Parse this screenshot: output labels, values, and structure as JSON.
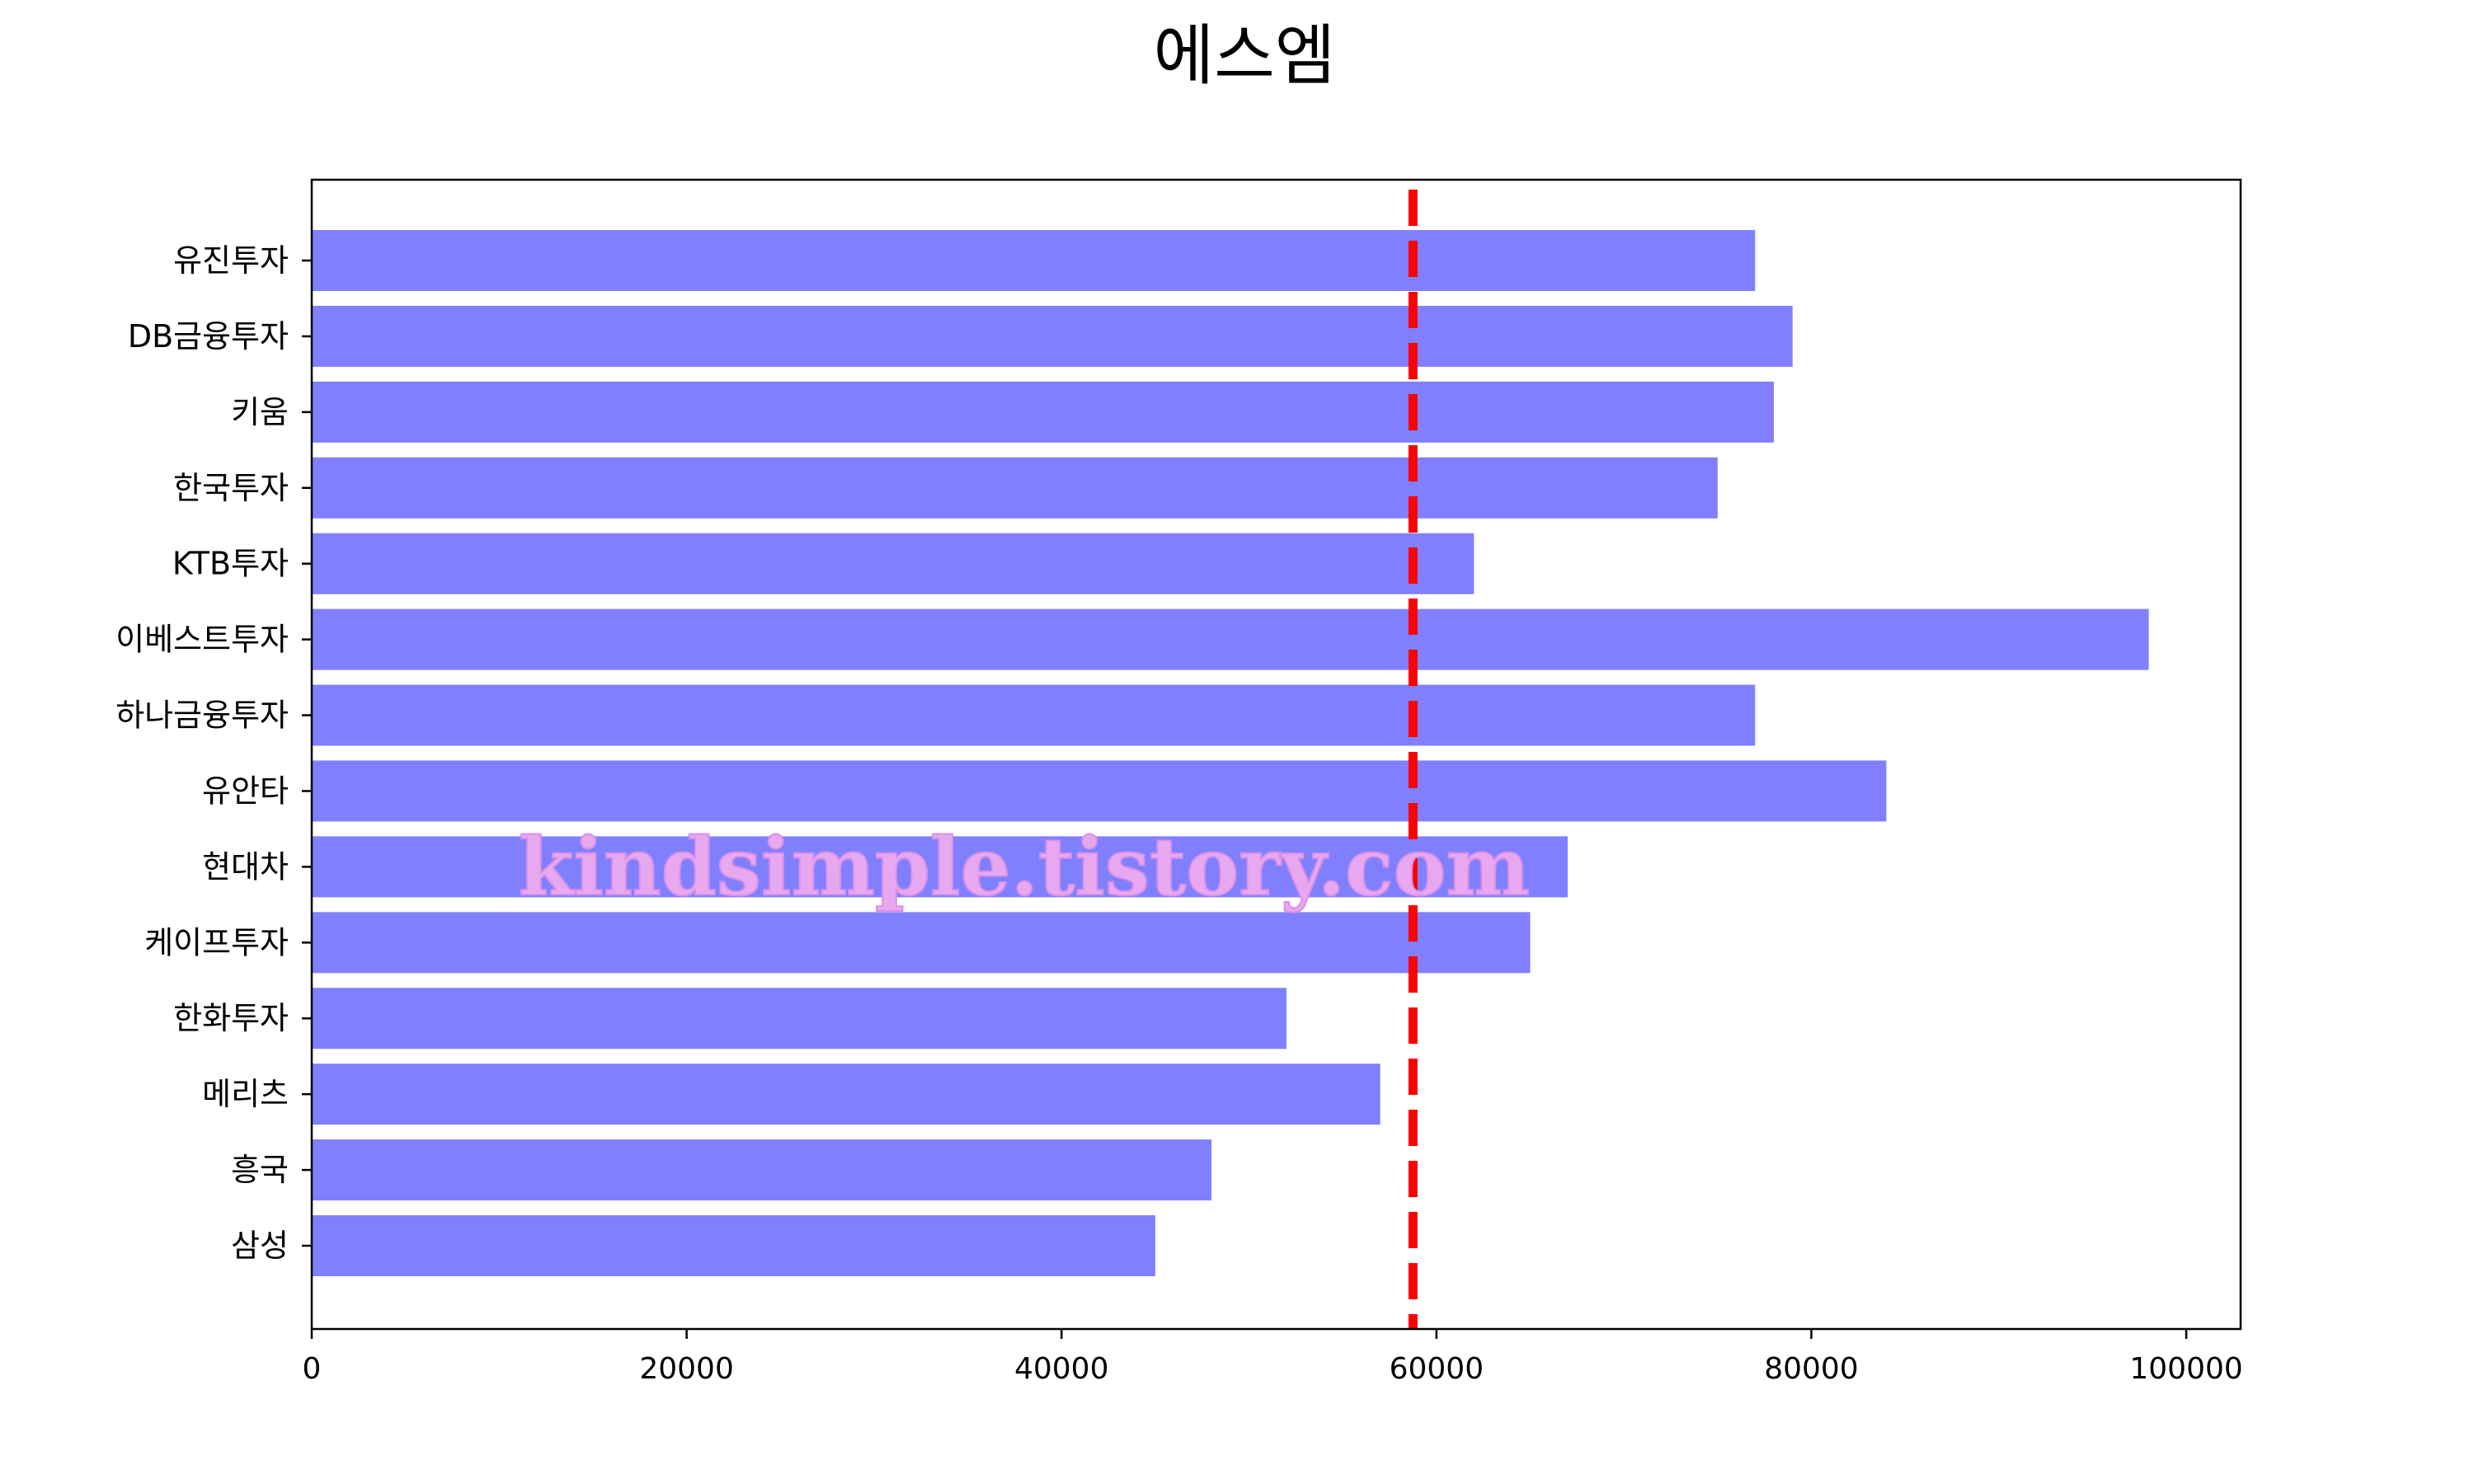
{
  "chart_data": {
    "type": "bar",
    "orientation": "horizontal",
    "title": "에스엠",
    "xlabel": "",
    "ylabel": "",
    "categories": [
      "유진투자",
      "DB금융투자",
      "키움",
      "한국투자",
      "KTB투자",
      "이베스트투자",
      "하나금융투자",
      "유안타",
      "현대차",
      "케이프투자",
      "한화투자",
      "메리츠",
      "흥국",
      "삼성"
    ],
    "values": [
      77000,
      79000,
      78000,
      75000,
      62000,
      98000,
      77000,
      84000,
      67000,
      65000,
      52000,
      57000,
      48000,
      45000
    ],
    "xlim": [
      0,
      102900
    ],
    "xticks": [
      "0",
      "20000",
      "40000",
      "60000",
      "80000",
      "100000"
    ],
    "reference_line": {
      "value": 58750,
      "color": "#ff0000",
      "style": "dashed"
    },
    "bar_color": "#8080ff",
    "grid": false,
    "watermark": "kindsimple.tistory.com"
  }
}
